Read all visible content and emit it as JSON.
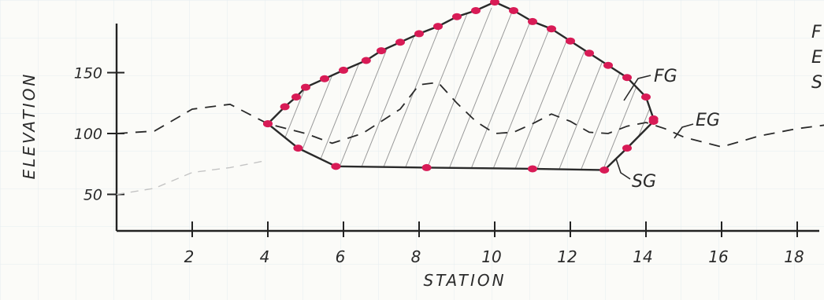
{
  "chart_data": {
    "type": "line",
    "xlabel": "STATION",
    "ylabel": "ELEVATION",
    "x_ticks": [
      2,
      4,
      6,
      8,
      10,
      12,
      14,
      16,
      18
    ],
    "y_ticks": [
      50,
      100,
      150
    ],
    "xlim": [
      0,
      19
    ],
    "ylim": [
      20,
      200
    ],
    "grid": false,
    "colors": {
      "axis": "#222222",
      "line": "#2a2a2a",
      "points": "#d81b56",
      "hatch": "#9a9a9a",
      "paper_grid": "#dde6ea"
    },
    "series": [
      {
        "name": "FG",
        "style": "solid",
        "x": [
          4.0,
          4.45,
          4.75,
          5.0,
          5.5,
          6.0,
          6.6,
          7.0,
          7.5,
          8.0,
          8.5,
          9.0,
          9.5,
          10.0,
          10.5,
          11.0,
          11.5,
          12.0,
          12.5,
          13.0,
          13.5,
          14.0,
          14.2
        ],
        "y": [
          108,
          122,
          130,
          138,
          145,
          152,
          160,
          168,
          175,
          182,
          188,
          196,
          201,
          208,
          201,
          192,
          186,
          176,
          166,
          156,
          146,
          130,
          112
        ]
      },
      {
        "name": "EG",
        "style": "dashed",
        "x": [
          0.0,
          1.0,
          2.0,
          3.0,
          4.0,
          5.0,
          5.7,
          6.5,
          7.5,
          8.0,
          8.5,
          9.0,
          9.5,
          10.0,
          10.5,
          11.0,
          11.5,
          12.0,
          12.5,
          13.0,
          13.5,
          14.0,
          14.5,
          15.0,
          16.0,
          17.0,
          18.0,
          19.0
        ],
        "y": [
          100,
          102,
          120,
          124,
          108,
          100,
          92,
          100,
          120,
          140,
          142,
          125,
          110,
          100,
          101,
          108,
          116,
          110,
          101,
          100,
          106,
          109,
          104,
          97,
          89,
          98,
          104,
          108
        ]
      },
      {
        "name": "SG",
        "style": "solid",
        "x": [
          4.0,
          4.8,
          5.8,
          8.2,
          11.0,
          12.9,
          13.5,
          14.2
        ],
        "y": [
          108,
          88,
          73,
          72,
          71,
          70,
          88,
          110
        ]
      }
    ],
    "extra_dashed_faint": {
      "x": [
        0.0,
        1.0,
        2.0,
        3.0,
        4.0
      ],
      "y": [
        50,
        55,
        68,
        72,
        78
      ]
    }
  },
  "labels": {
    "FG": "FG",
    "EG": "EG",
    "SG": "SG",
    "legend_partial": [
      "F",
      "E",
      "S"
    ]
  }
}
